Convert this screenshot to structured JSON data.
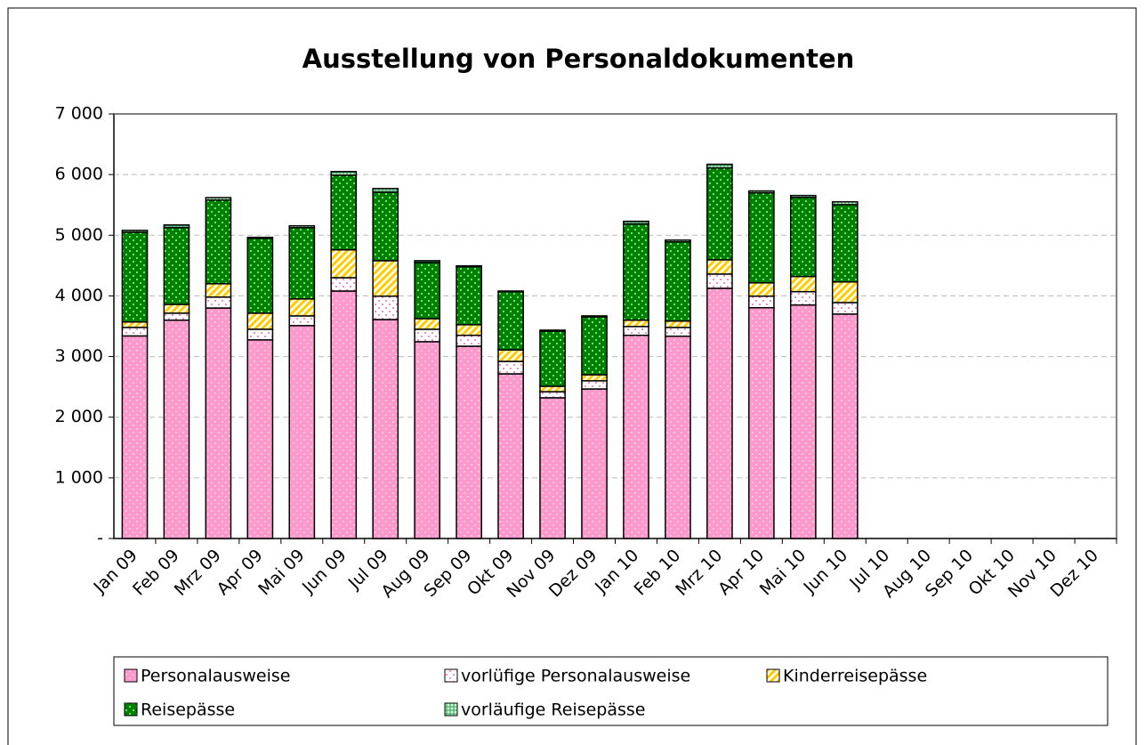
{
  "chart_data": {
    "type": "stacked_bar",
    "title": "Ausstellung von Personaldokumenten",
    "categories": [
      "Jan 09",
      "Feb 09",
      "Mrz 09",
      "Apr 09",
      "Mai 09",
      "Jun 09",
      "Jul 09",
      "Aug 09",
      "Sep 09",
      "Okt 09",
      "Nov 09",
      "Dez 09",
      "Jan 10",
      "Feb 10",
      "Mrz 10",
      "Apr 10",
      "Mai 10",
      "Jun 10",
      "Jul 10",
      "Aug 10",
      "Sep 10",
      "Okt 10",
      "Nov 10",
      "Dez 10"
    ],
    "series": [
      {
        "name": "Personalausweise",
        "color": "#ff99cc",
        "values": [
          3340,
          3600,
          3800,
          3275,
          3510,
          4080,
          3610,
          3245,
          3170,
          2715,
          2320,
          2465,
          3350,
          3335,
          4125,
          3805,
          3850,
          3700,
          null,
          null,
          null,
          null,
          null,
          null
        ]
      },
      {
        "name": "vorlüfige Personalausweise",
        "color": "#ffffff",
        "values": [
          140,
          115,
          180,
          175,
          160,
          220,
          385,
          205,
          180,
          205,
          100,
          135,
          145,
          145,
          235,
          190,
          220,
          190,
          null,
          null,
          null,
          null,
          null,
          null
        ]
      },
      {
        "name": "Kinderreisepässe",
        "color": "#ffcc00",
        "values": [
          90,
          145,
          220,
          265,
          280,
          460,
          585,
          175,
          175,
          190,
          90,
          100,
          105,
          105,
          235,
          220,
          250,
          340,
          null,
          null,
          null,
          null,
          null,
          null
        ]
      },
      {
        "name": "Reisepässe",
        "color": "#008000",
        "values": [
          1480,
          1265,
          1380,
          1235,
          1175,
          1230,
          1130,
          925,
          955,
          960,
          910,
          955,
          1585,
          1305,
          1515,
          1485,
          1305,
          1275,
          null,
          null,
          null,
          null,
          null,
          null
        ]
      },
      {
        "name": "vorläufige Reisepässe",
        "color": "#339966",
        "values": [
          30,
          45,
          40,
          15,
          30,
          60,
          60,
          30,
          15,
          10,
          15,
          15,
          45,
          30,
          60,
          30,
          30,
          45,
          null,
          null,
          null,
          null,
          null,
          null
        ]
      }
    ],
    "ylim": [
      0,
      7000
    ],
    "yticks": [
      {
        "value": 0,
        "label": "-"
      },
      {
        "value": 1000,
        "label": "1 000"
      },
      {
        "value": 2000,
        "label": "2 000"
      },
      {
        "value": 3000,
        "label": "3 000"
      },
      {
        "value": 4000,
        "label": "4 000"
      },
      {
        "value": 5000,
        "label": "5 000"
      },
      {
        "value": 6000,
        "label": "6 000"
      },
      {
        "value": 7000,
        "label": "7 000"
      }
    ],
    "grid": true
  }
}
